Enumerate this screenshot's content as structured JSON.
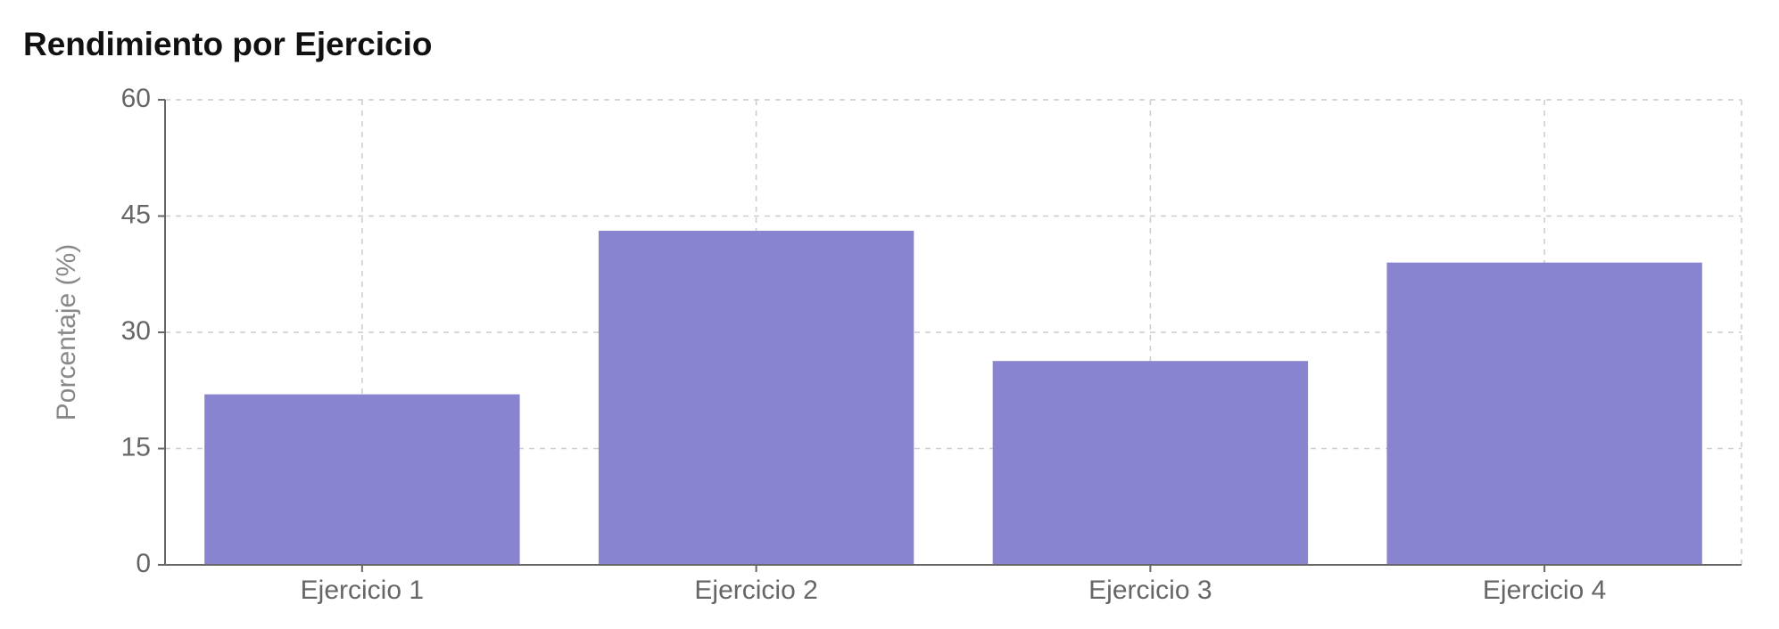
{
  "chart_data": {
    "type": "bar",
    "title": "Rendimiento por Ejercicio",
    "y_label": "Porcentaje (%)",
    "categories": [
      "Ejercicio 1",
      "Ejercicio 2",
      "Ejercicio 3",
      "Ejercicio 4"
    ],
    "values": [
      22,
      43.1,
      26.3,
      39
    ],
    "color": "#8884d0",
    "ylim": [
      0,
      60
    ],
    "yticks": [
      0,
      15,
      30,
      45,
      60
    ],
    "grid": true
  }
}
